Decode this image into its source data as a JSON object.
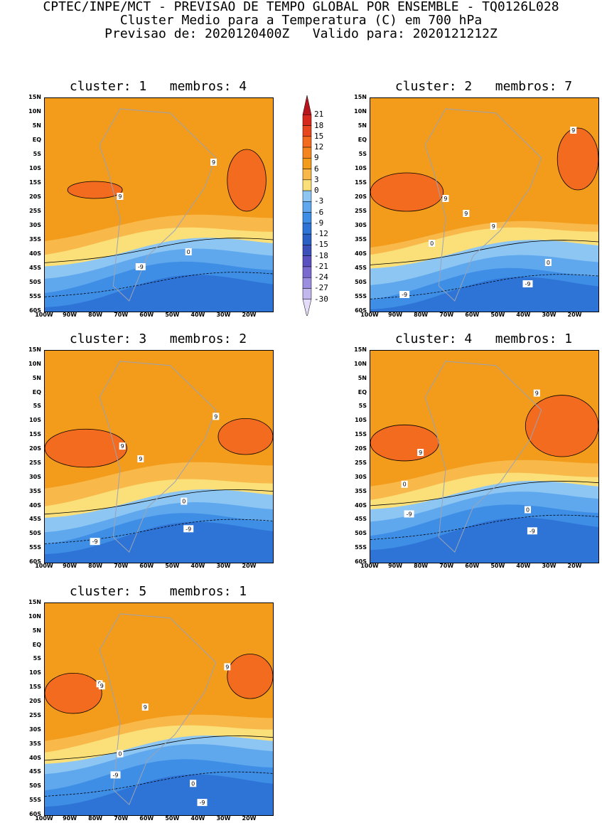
{
  "header": {
    "line1": "CPTEC/INPE/MCT - PREVISAO DE TEMPO GLOBAL POR ENSEMBLE - TQ0126L028",
    "line2": "Cluster Medio para a Temperatura (C) em 700 hPa",
    "line3": "Previsao de: 2020120400Z   Valido para: 2020121212Z"
  },
  "lat_labels": [
    "15N",
    "10N",
    "5N",
    "EQ",
    "5S",
    "10S",
    "15S",
    "20S",
    "25S",
    "30S",
    "35S",
    "40S",
    "45S",
    "50S",
    "55S",
    "60S"
  ],
  "lon_labels": [
    "100W",
    "90W",
    "80W",
    "70W",
    "60W",
    "50W",
    "40W",
    "30W",
    "20W"
  ],
  "panels": [
    {
      "title": "cluster: 1   membros: 4",
      "contour_labels": [
        "9",
        "9",
        "0",
        "-9"
      ]
    },
    {
      "title": "cluster: 2   membros: 7",
      "contour_labels": [
        "9",
        "9",
        "9",
        "9",
        "0",
        "0",
        "-9",
        "-9"
      ]
    },
    {
      "title": "cluster: 3   membros: 2",
      "contour_labels": [
        "9",
        "9",
        "9",
        "0",
        "-9",
        "-9"
      ]
    },
    {
      "title": "cluster: 4   membros: 1",
      "contour_labels": [
        "9",
        "9",
        "0",
        "0",
        "-9",
        "-9"
      ]
    },
    {
      "title": "cluster: 5   membros: 1",
      "contour_labels": [
        "9",
        "9",
        "9",
        "9",
        "0",
        "0",
        "-9",
        "-9"
      ]
    }
  ],
  "colorbar": {
    "labels": [
      "21",
      "18",
      "15",
      "12",
      "9",
      "6",
      "3",
      "0",
      "-3",
      "-6",
      "-9",
      "-12",
      "-15",
      "-18",
      "-21",
      "-24",
      "-27",
      "-30"
    ],
    "colors": [
      "#b8141e",
      "#d7281e",
      "#e8461e",
      "#f26b1e",
      "#f5851e",
      "#f39b1a",
      "#f8b94a",
      "#fbe07a",
      "#8dc6f2",
      "#5fa8ee",
      "#3f8ee6",
      "#2e74d6",
      "#2a5fc4",
      "#3b4fb8",
      "#5a50c0",
      "#7a6ad0",
      "#9b8ee0",
      "#c2b8ee",
      "#e4dcf8"
    ]
  }
}
